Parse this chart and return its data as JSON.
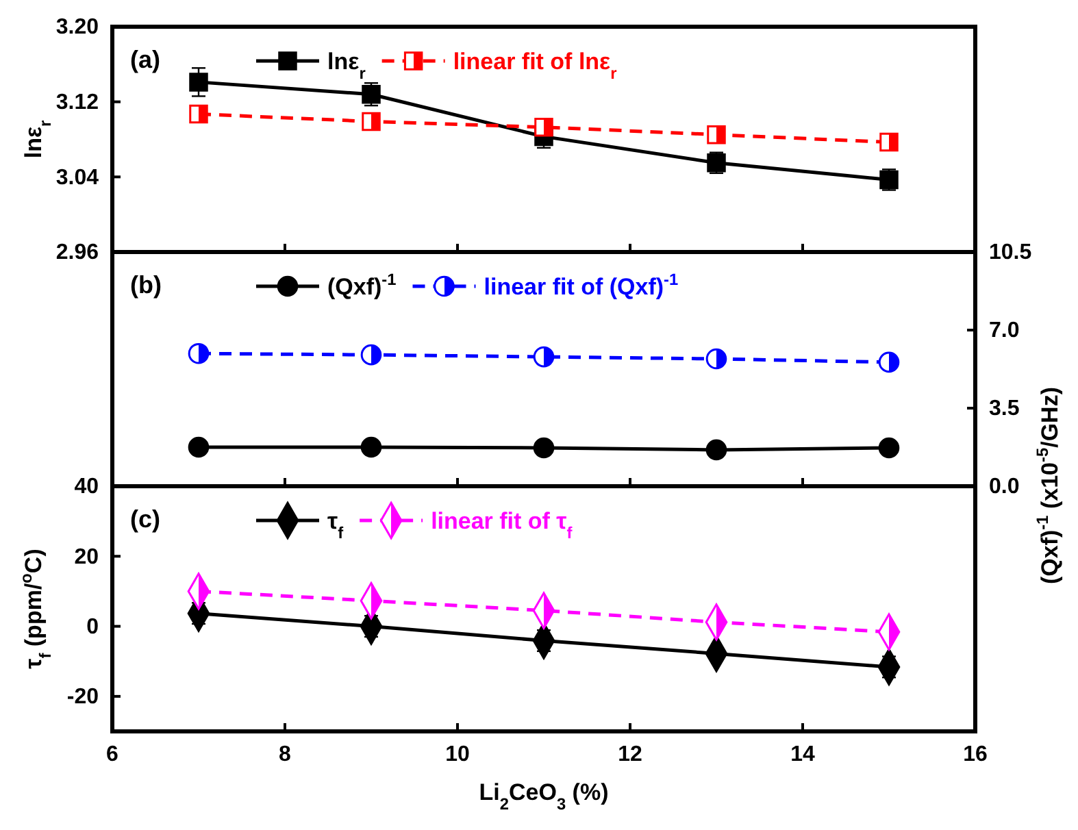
{
  "chart_data": [
    {
      "type": "line",
      "ylabel": "lnε$_{r}$",
      "xlim": [
        6,
        16
      ],
      "xticks": [
        6,
        8,
        10,
        12,
        14,
        16
      ],
      "ylim": [
        2.96,
        3.2
      ],
      "yticks": [
        2.96,
        3.04,
        3.12,
        {
          "value": 3.2,
          "label": "3.20"
        }
      ],
      "tick_labels": "y",
      "legend": "top left",
      "grid": false,
      "annotations": [
        "(a)"
      ],
      "x": [
        7,
        9,
        11,
        13,
        15
      ],
      "series": [
        {
          "name": "lnε$_{r}$",
          "color": "#000000",
          "marker": "square",
          "line_style": "solid",
          "values": [
            3.141,
            3.128,
            3.083,
            3.055,
            3.037
          ],
          "errors": [
            0.015,
            0.012,
            0.012,
            0.011,
            0.011
          ]
        },
        {
          "name": "linear fit of lnε$_{r}$",
          "color": "#ff0000",
          "marker": "square",
          "line_style": "dashed",
          "values": [
            3.107,
            3.099,
            3.093,
            3.085,
            3.077
          ]
        }
      ]
    },
    {
      "type": "line",
      "y2label": "(Qxf)$^{-1}$ (x10$^{-5}$/GHz)",
      "xlim": [
        6,
        16
      ],
      "xticks": [
        6,
        8,
        10,
        12,
        14,
        16
      ],
      "y2lim": [
        0,
        10.5
      ],
      "y2ticks": [
        {
          "value": 0,
          "label": "0.0"
        },
        3.5,
        {
          "value": 7,
          "label": "7.0"
        },
        10.5
      ],
      "tick_labels": "y",
      "legend": "top left",
      "grid": false,
      "annotations": [
        "(b)"
      ],
      "x": [
        7,
        9,
        11,
        13,
        15
      ],
      "series": [
        {
          "name": "(Qxf)$^{-1}$",
          "color": "#000000",
          "marker": "circle",
          "line_style": "solid",
          "axis": "y2",
          "values": [
            1.75,
            1.75,
            1.72,
            1.63,
            1.72
          ]
        },
        {
          "name": "linear fit of (Qxf)$^{-1}$",
          "color": "#0000ff",
          "marker": "circle",
          "line_style": "dashed",
          "axis": "y2",
          "values": [
            5.95,
            5.89,
            5.8,
            5.71,
            5.56
          ]
        }
      ]
    },
    {
      "type": "line",
      "xlabel": "Li$_{2}$CeO$_{3}$ (%)",
      "ylabel": "τ$_{f}$ (ppm/$^{o}$C)",
      "xlim": [
        6,
        16
      ],
      "xticks": [
        6,
        8,
        10,
        12,
        14,
        16
      ],
      "ylim": [
        -30,
        40
      ],
      "yticks": [
        -20,
        0,
        20,
        40
      ],
      "legend": "top left",
      "grid": false,
      "annotations": [
        "(c)"
      ],
      "x": [
        7,
        9,
        11,
        13,
        15
      ],
      "series": [
        {
          "name": "τ$_{f}$",
          "color": "#000000",
          "marker": "diamond",
          "line_style": "solid",
          "values": [
            3.7,
            0,
            -4.1,
            -7.8,
            -11.6
          ],
          "errors": [
            3,
            3,
            3,
            2,
            3
          ]
        },
        {
          "name": "linear fit of τ$_{f}$",
          "color": "#ff00ff",
          "marker": "diamond",
          "line_style": "dashed",
          "values": [
            10,
            7.3,
            4.5,
            1.2,
            -1.6
          ]
        }
      ]
    }
  ]
}
